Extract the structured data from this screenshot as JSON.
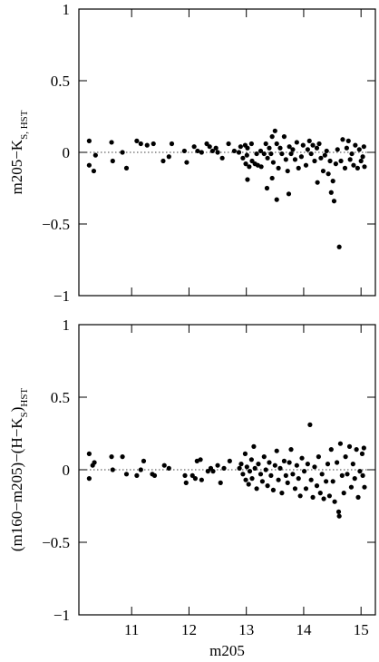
{
  "chart_data": [
    {
      "type": "scatter",
      "ylabel": [
        {
          "text": "m205−K"
        },
        {
          "text": "S, HST",
          "sub": true
        }
      ],
      "xlim": [
        10.08,
        15.25
      ],
      "ylim": [
        -1,
        1
      ],
      "xticks": [
        11,
        12,
        13,
        14,
        15
      ],
      "show_xtick_labels": false,
      "yticks": [
        {
          "value": -1,
          "label": "−1"
        },
        {
          "value": -0.5,
          "label": "−0.5"
        },
        0,
        0.5,
        1
      ],
      "zero_line": true,
      "color": "#000000",
      "x": [
        10.26,
        10.26,
        10.34,
        10.37,
        10.65,
        10.67,
        10.84,
        10.91,
        11.09,
        11.16,
        11.27,
        11.38,
        11.55,
        11.65,
        11.7,
        11.92,
        11.96,
        12.09,
        12.15,
        12.22,
        12.31,
        12.36,
        12.41,
        12.47,
        12.5,
        12.58,
        12.69,
        12.79,
        12.87,
        12.9,
        12.94,
        12.98,
        12.99,
        13.01,
        13.02,
        13.05,
        13.09,
        13.1,
        13.15,
        13.18,
        13.2,
        13.25,
        13.26,
        13.31,
        13.34,
        13.37,
        13.4,
        13.43,
        13.45,
        13.47,
        13.5,
        13.53,
        13.56,
        13.59,
        13.62,
        13.66,
        13.69,
        13.72,
        13.75,
        13.78,
        13.81,
        13.85,
        13.88,
        13.91,
        13.45,
        13.36,
        13.53,
        13.74,
        13.02,
        13.96,
        13.99,
        14.04,
        14.07,
        14.1,
        14.13,
        14.16,
        14.19,
        14.23,
        14.24,
        14.27,
        14.3,
        14.34,
        14.37,
        14.4,
        14.43,
        14.46,
        14.48,
        14.51,
        14.53,
        14.56,
        14.59,
        14.62,
        14.65,
        14.68,
        14.72,
        14.75,
        14.78,
        14.81,
        14.84,
        14.87,
        14.9,
        14.94,
        14.97,
        15,
        15.03,
        15.06,
        15.05
      ],
      "values": [
        0.08,
        -0.09,
        -0.13,
        -0.02,
        0.07,
        -0.06,
        0,
        -0.11,
        0.08,
        0.06,
        0.05,
        0.06,
        -0.06,
        -0.03,
        0.06,
        0.01,
        -0.07,
        0.04,
        0.01,
        0,
        0.06,
        0.04,
        0.01,
        0.03,
        0,
        -0.04,
        0.06,
        0.01,
        0,
        0.04,
        -0.04,
        0.05,
        -0.08,
        -0.02,
        0.03,
        -0.1,
        0.06,
        -0.06,
        -0.08,
        -0.01,
        -0.09,
        0.01,
        -0.1,
        -0.01,
        0.06,
        -0.04,
        0.03,
        -0.01,
        0.11,
        -0.07,
        0.15,
        0.06,
        -0.11,
        0.03,
        -0.01,
        0.11,
        -0.05,
        -0.13,
        0.04,
        -0.01,
        0.02,
        -0.05,
        0.07,
        -0.11,
        -0.18,
        -0.25,
        -0.33,
        -0.29,
        -0.19,
        -0.03,
        0.05,
        -0.09,
        0.02,
        0.08,
        -0.01,
        0.05,
        -0.06,
        0.03,
        -0.21,
        0.06,
        -0.04,
        -0.13,
        -0.02,
        0.01,
        -0.15,
        -0.06,
        -0.28,
        -0.2,
        -0.34,
        -0.08,
        0.02,
        -0.66,
        -0.06,
        0.09,
        -0.11,
        0.03,
        0.08,
        -0.05,
        -0.01,
        -0.09,
        0.05,
        -0.11,
        0.02,
        -0.06,
        -0.03,
        -0.1,
        0.04
      ]
    },
    {
      "type": "scatter",
      "ylabel": [
        {
          "text": "(m160−m205)−(H−K"
        },
        {
          "text": "S",
          "sub": true
        },
        {
          "text": ")"
        },
        {
          "text": "HST",
          "sub": true
        }
      ],
      "xlabel": "m205",
      "xlim": [
        10.08,
        15.25
      ],
      "ylim": [
        -1,
        1
      ],
      "xticks": [
        11,
        12,
        13,
        14,
        15
      ],
      "show_xtick_labels": true,
      "yticks": [
        {
          "value": -1,
          "label": "−1"
        },
        {
          "value": -0.5,
          "label": "−0.5"
        },
        0,
        0.5,
        1
      ],
      "zero_line": true,
      "color": "#000000",
      "x": [
        10.26,
        10.26,
        10.32,
        10.35,
        10.65,
        10.67,
        10.84,
        10.91,
        11.09,
        11.16,
        11.21,
        11.36,
        11.4,
        11.57,
        11.65,
        11.93,
        11.95,
        12.06,
        12.11,
        12.14,
        12.2,
        12.22,
        12.33,
        12.38,
        12.42,
        12.5,
        12.55,
        12.61,
        12.71,
        12.88,
        12.91,
        12.94,
        12.98,
        12.99,
        13.01,
        13.04,
        13.06,
        13.09,
        13.1,
        13.13,
        13.15,
        13.18,
        13.21,
        13.25,
        13.28,
        13.31,
        13.34,
        13.37,
        13.4,
        13.43,
        13.47,
        13.5,
        13.53,
        13.56,
        13.59,
        13.62,
        13.66,
        13.69,
        13.72,
        13.75,
        13.78,
        13.81,
        13.85,
        13.88,
        13.91,
        13.94,
        13.97,
        14.01,
        14.04,
        14.07,
        14.11,
        14.13,
        14.16,
        14.19,
        14.23,
        14.26,
        14.29,
        14.32,
        14.35,
        14.39,
        14.42,
        14.45,
        14.48,
        14.51,
        14.54,
        14.58,
        14.61,
        14.62,
        14.64,
        14.67,
        14.7,
        14.73,
        14.76,
        14.8,
        14.83,
        14.86,
        14.89,
        14.92,
        14.95,
        14.98,
        15.02,
        15.03,
        15.05,
        15.06
      ],
      "values": [
        0.11,
        -0.06,
        0.03,
        0.05,
        0.09,
        0,
        0.09,
        -0.03,
        -0.04,
        0,
        0.06,
        -0.03,
        -0.04,
        0.03,
        0.01,
        -0.04,
        -0.09,
        -0.04,
        -0.06,
        0.06,
        0.07,
        -0.07,
        -0.01,
        0.01,
        -0.01,
        0.03,
        -0.09,
        0.01,
        0.06,
        0.01,
        0.04,
        -0.03,
        0.11,
        -0.07,
        0.02,
        -0.1,
        -0.01,
        0.07,
        -0.06,
        0.16,
        0.01,
        -0.13,
        0.04,
        -0.03,
        -0.08,
        0.09,
        0,
        -0.11,
        0.05,
        -0.04,
        -0.14,
        0.03,
        0.13,
        -0.07,
        0.01,
        -0.16,
        0.06,
        -0.04,
        -0.09,
        0.05,
        0.14,
        -0.03,
        -0.13,
        0.03,
        -0.06,
        -0.18,
        0.08,
        -0.01,
        -0.13,
        0.04,
        0.31,
        -0.07,
        -0.19,
        0.02,
        -0.11,
        0.09,
        -0.16,
        -0.03,
        -0.2,
        -0.08,
        0.04,
        -0.18,
        0.14,
        -0.08,
        -0.22,
        0.05,
        -0.29,
        -0.32,
        0.18,
        -0.04,
        -0.16,
        0.09,
        -0.03,
        0.16,
        -0.12,
        0.04,
        -0.06,
        0.14,
        -0.19,
        -0.01,
        0.11,
        -0.04,
        0.15,
        -0.12
      ]
    }
  ]
}
